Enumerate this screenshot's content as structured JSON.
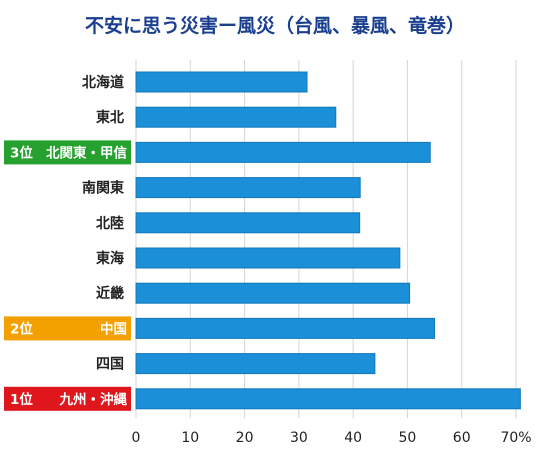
{
  "chart_data": {
    "type": "bar",
    "orientation": "horizontal",
    "title": "不安に思う災害ー風災（台風、暴風、竜巻）",
    "categories": [
      "北海道",
      "東北",
      "北関東・甲信",
      "南関東",
      "北陸",
      "東海",
      "近畿",
      "中国",
      "四国",
      "九州・沖縄"
    ],
    "category_labels": [
      {
        "label": "北海道"
      },
      {
        "label": "東北"
      },
      {
        "rank": "3位",
        "label": "北関東・甲信",
        "badge_color": "#26a12f"
      },
      {
        "label": "南関東"
      },
      {
        "label": "北陸"
      },
      {
        "label": "東海"
      },
      {
        "label": "近畿"
      },
      {
        "rank": "2位",
        "label": "中国",
        "badge_color": "#f2a100"
      },
      {
        "label": "四国"
      },
      {
        "rank": "1位",
        "label": "九州・沖縄",
        "badge_color": "#e0161d"
      }
    ],
    "values": [
      31.5,
      36.8,
      54.2,
      41.3,
      41.2,
      48.6,
      50.4,
      55.0,
      44.0,
      70.8
    ],
    "xlim": [
      0,
      70
    ],
    "xticks": [
      0,
      10,
      20,
      30,
      40,
      50,
      60,
      70
    ],
    "xtick_labels": [
      "0",
      "10",
      "20",
      "30",
      "40",
      "50",
      "60",
      "70%"
    ],
    "grid": true,
    "colors": {
      "bar": "#1b8fd8",
      "bar_edge": "#1578b8",
      "title": "#1a3f8f",
      "grid": "#d6d6d6",
      "text": "#222222"
    }
  }
}
